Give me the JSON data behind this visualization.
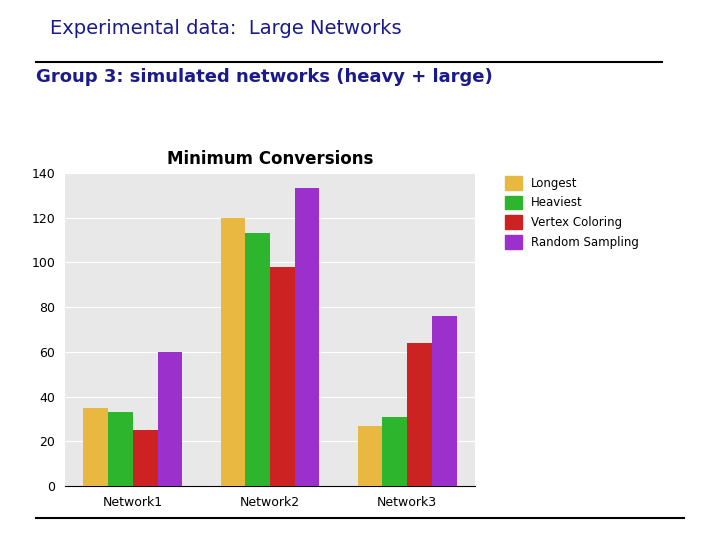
{
  "title": "Experimental data:  Large Networks",
  "subtitle": "Group 3: simulated networks (heavy + large)",
  "chart_title": "Minimum Conversions",
  "categories": [
    "Network1",
    "Network2",
    "Network3"
  ],
  "series": {
    "Longest": [
      35,
      120,
      27
    ],
    "Heaviest": [
      33,
      113,
      31
    ],
    "Vertex Coloring": [
      25,
      98,
      64
    ],
    "Random Sampling": [
      60,
      133,
      76
    ]
  },
  "colors": {
    "Longest": "#E8B840",
    "Heaviest": "#2DB52D",
    "Vertex Coloring": "#CC2222",
    "Random Sampling": "#9B30CC"
  },
  "ylim": [
    0,
    140
  ],
  "yticks": [
    0,
    20,
    40,
    60,
    80,
    100,
    120,
    140
  ],
  "title_color": "#1A1A8C",
  "subtitle_color": "#1A1A8C",
  "chart_title_color": "#000000",
  "bg_color": "#FFFFFF",
  "plot_bg_color": "#E8E8E8",
  "bar_width": 0.18,
  "title_fontsize": 14,
  "subtitle_fontsize": 13,
  "chart_title_fontsize": 12
}
